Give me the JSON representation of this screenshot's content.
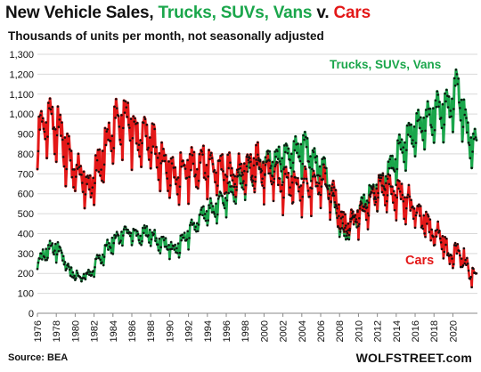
{
  "title": {
    "part1": "New Vehicle Sales, ",
    "part2": "Trucks, SUVs, Vans",
    "part3": " v. ",
    "part4": "Cars"
  },
  "subtitle": "Thousands of units per month, not seasonally adjusted",
  "source": "Source: BEA",
  "brand": "WOLFSTREET.com",
  "colors": {
    "trucks": "#1aa64b",
    "cars": "#e31818",
    "markers": "#111111",
    "grid": "#d9d9d9"
  },
  "chart_data": {
    "type": "line",
    "title": "New Vehicle Sales, Trucks, SUVs, Vans v. Cars",
    "subtitle": "Thousands of units per month, not seasonally adjusted",
    "ylim": [
      0,
      1300
    ],
    "yticks": [
      0,
      100,
      200,
      300,
      400,
      500,
      600,
      700,
      800,
      900,
      1000,
      1100,
      1200,
      1300
    ],
    "ytick_labels": [
      "0",
      "100",
      "200",
      "300",
      "400",
      "500",
      "600",
      "700",
      "800",
      "900",
      "1,000",
      "1,100",
      "1,200",
      "1,300"
    ],
    "xlim": [
      1976,
      2022.6
    ],
    "xticks": [
      1976,
      1978,
      1980,
      1982,
      1984,
      1986,
      1988,
      1990,
      1992,
      1994,
      1996,
      1998,
      2000,
      2002,
      2004,
      2006,
      2008,
      2010,
      2012,
      2014,
      2016,
      2018,
      2020
    ],
    "grid": true,
    "frequency": "monthly",
    "series_label_trucks": "Trucks, SUVs, Vans",
    "series_label_cars": "Cars",
    "series": [
      {
        "name": "Trucks, SUVs, Vans",
        "annual_points": [
          [
            1976,
            240
          ],
          [
            1977,
            280
          ],
          [
            1978,
            330
          ],
          [
            1979,
            300
          ],
          [
            1980,
            200
          ],
          [
            1981,
            180
          ],
          [
            1982,
            190
          ],
          [
            1983,
            260
          ],
          [
            1984,
            330
          ],
          [
            1985,
            370
          ],
          [
            1986,
            410
          ],
          [
            1987,
            390
          ],
          [
            1988,
            400
          ],
          [
            1989,
            370
          ],
          [
            1990,
            340
          ],
          [
            1991,
            300
          ],
          [
            1992,
            360
          ],
          [
            1993,
            430
          ],
          [
            1994,
            490
          ],
          [
            1995,
            510
          ],
          [
            1996,
            560
          ],
          [
            1997,
            600
          ],
          [
            1998,
            650
          ],
          [
            1999,
            700
          ],
          [
            2000,
            720
          ],
          [
            2001,
            740
          ],
          [
            2002,
            760
          ],
          [
            2003,
            780
          ],
          [
            2004,
            800
          ],
          [
            2005,
            810
          ],
          [
            2006,
            730
          ],
          [
            2007,
            700
          ],
          [
            2008,
            520
          ],
          [
            2009,
            380
          ],
          [
            2010,
            460
          ],
          [
            2011,
            540
          ],
          [
            2012,
            590
          ],
          [
            2013,
            640
          ],
          [
            2014,
            720
          ],
          [
            2015,
            820
          ],
          [
            2016,
            880
          ],
          [
            2017,
            920
          ],
          [
            2018,
            960
          ],
          [
            2019,
            1000
          ],
          [
            2020,
            1000
          ],
          [
            2021,
            1130
          ],
          [
            2022,
            900
          ],
          [
            2022.55,
            830
          ]
        ]
      },
      {
        "name": "Cars",
        "annual_points": [
          [
            1976,
            830
          ],
          [
            1977,
            920
          ],
          [
            1978,
            940
          ],
          [
            1979,
            880
          ],
          [
            1980,
            740
          ],
          [
            1981,
            690
          ],
          [
            1982,
            620
          ],
          [
            1983,
            720
          ],
          [
            1984,
            850
          ],
          [
            1985,
            930
          ],
          [
            1986,
            970
          ],
          [
            1987,
            850
          ],
          [
            1988,
            880
          ],
          [
            1989,
            800
          ],
          [
            1990,
            730
          ],
          [
            1991,
            680
          ],
          [
            1992,
            700
          ],
          [
            1993,
            710
          ],
          [
            1994,
            740
          ],
          [
            1995,
            720
          ],
          [
            1996,
            700
          ],
          [
            1997,
            690
          ],
          [
            1998,
            680
          ],
          [
            1999,
            720
          ],
          [
            2000,
            730
          ],
          [
            2001,
            690
          ],
          [
            2002,
            660
          ],
          [
            2003,
            630
          ],
          [
            2004,
            620
          ],
          [
            2005,
            630
          ],
          [
            2006,
            640
          ],
          [
            2007,
            630
          ],
          [
            2008,
            560
          ],
          [
            2009,
            420
          ],
          [
            2010,
            470
          ],
          [
            2011,
            510
          ],
          [
            2012,
            580
          ],
          [
            2013,
            610
          ],
          [
            2014,
            610
          ],
          [
            2015,
            580
          ],
          [
            2016,
            530
          ],
          [
            2017,
            470
          ],
          [
            2018,
            420
          ],
          [
            2019,
            380
          ],
          [
            2020,
            280
          ],
          [
            2021,
            310
          ],
          [
            2022,
            240
          ],
          [
            2022.55,
            200
          ]
        ]
      }
    ],
    "annotations": [
      "Trucks, SUVs, Vans",
      "Cars"
    ]
  }
}
